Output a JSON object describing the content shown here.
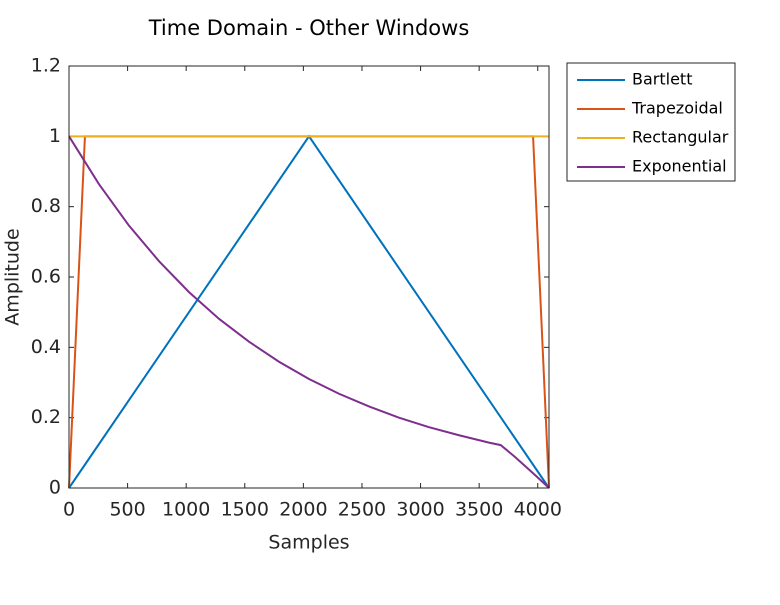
{
  "chart_data": {
    "type": "line",
    "title": "Time Domain - Other Windows",
    "x_label": "Samples",
    "y_label": "Amplitude",
    "xlim": [
      0,
      4096
    ],
    "ylim": [
      0,
      1.2
    ],
    "xticks": [
      0,
      500,
      1000,
      1500,
      2000,
      2500,
      3000,
      3500,
      4000
    ],
    "yticks": [
      0,
      0.2,
      0.4,
      0.6,
      0.8,
      1,
      1.2
    ],
    "legend": "outside-top-right",
    "series": [
      {
        "name": "Bartlett",
        "color": "#0072BD",
        "x": [
          0,
          2048,
          4096
        ],
        "values": [
          0,
          1,
          0
        ]
      },
      {
        "name": "Trapezoidal",
        "color": "#D95319",
        "x": [
          0,
          136,
          3960,
          4096
        ],
        "values": [
          0,
          1,
          1,
          0
        ]
      },
      {
        "name": "Rectangular",
        "color": "#EDB120",
        "x": [
          0,
          4096
        ],
        "values": [
          1,
          1
        ]
      },
      {
        "name": "Exponential",
        "color": "#7E2F8E",
        "x": [
          0,
          256,
          512,
          768,
          1024,
          1280,
          1536,
          1792,
          2048,
          2304,
          2560,
          2816,
          3072,
          3328,
          3584,
          3684,
          3800,
          3900,
          4000,
          4096
        ],
        "values": [
          1,
          0.864,
          0.746,
          0.645,
          0.557,
          0.481,
          0.416,
          0.359,
          0.31,
          0.268,
          0.232,
          0.2,
          0.173,
          0.15,
          0.129,
          0.122,
          0.09,
          0.06,
          0.03,
          0
        ]
      }
    ]
  }
}
